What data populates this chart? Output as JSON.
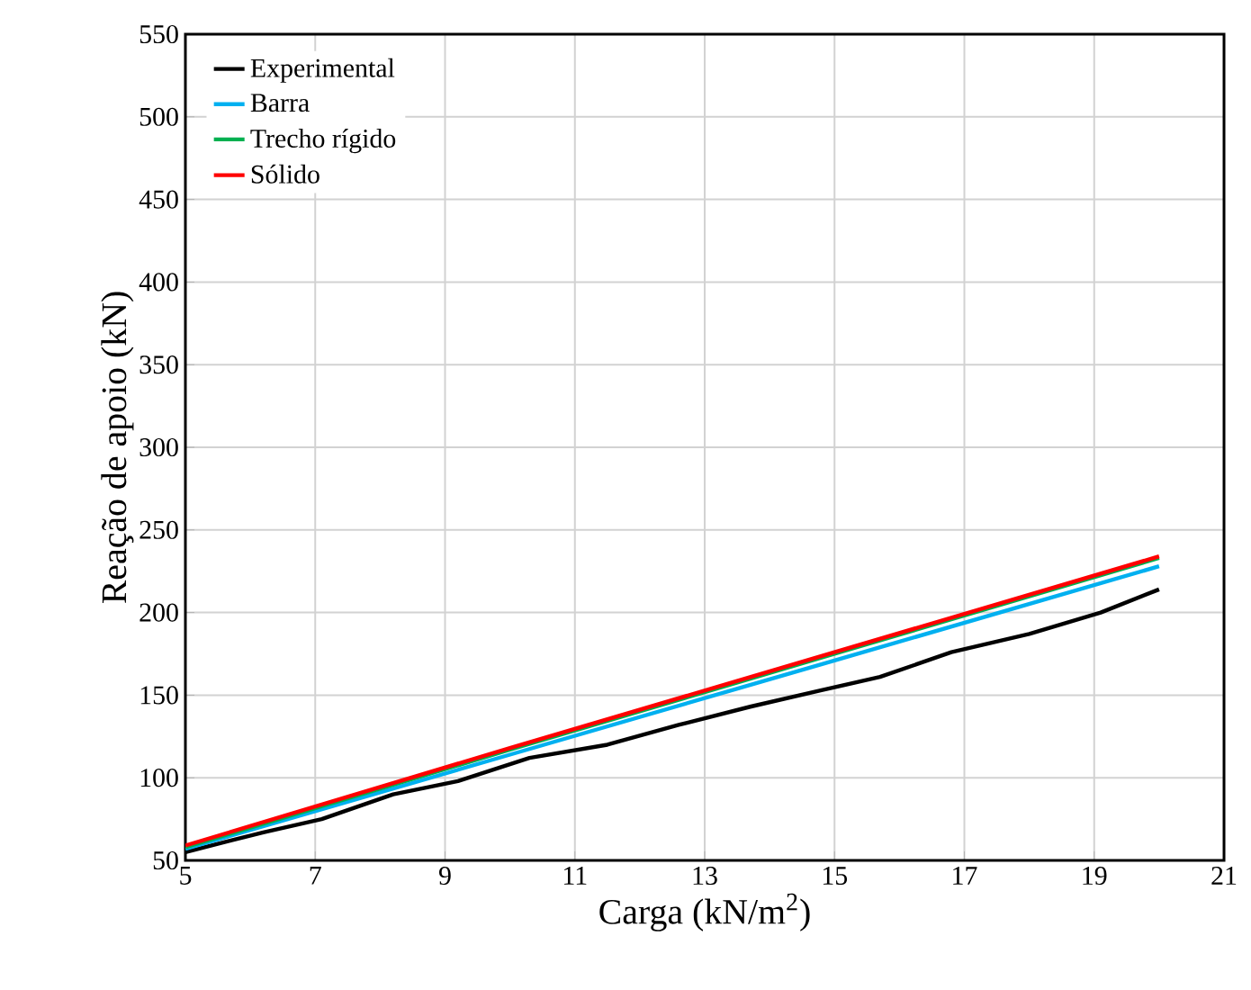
{
  "chart_data": {
    "type": "line",
    "xlabel": "Carga (kN/m$^{2}$)",
    "ylabel": "Reação de apoio (kN)",
    "xlim": [
      5,
      21
    ],
    "xticks": [
      5,
      7,
      9,
      11,
      13,
      15,
      17,
      19,
      21
    ],
    "ylim": [
      50,
      550
    ],
    "yticks": [
      50,
      100,
      150,
      200,
      250,
      300,
      350,
      400,
      450,
      500,
      550
    ],
    "grid": true,
    "legend": "top left",
    "marker": "none",
    "line_style": "solid",
    "series": [
      {
        "name": "Experimental",
        "color": "#000000",
        "x": [
          5,
          6.2,
          7.1,
          8.2,
          9.2,
          10.3,
          11.5,
          12.6,
          13.7,
          14.8,
          15.7,
          16.8,
          18,
          19.1,
          20
        ],
        "values": [
          55,
          67,
          75,
          90,
          98,
          112,
          120,
          132,
          143,
          153,
          161,
          176,
          187,
          200,
          214
        ]
      },
      {
        "name": "Barra",
        "color": "#00b0f0",
        "x": [
          5,
          10,
          15,
          20
        ],
        "values": [
          57,
          114,
          171,
          228
        ]
      },
      {
        "name": "Trecho rígido",
        "color": "#00b050",
        "x": [
          5,
          10,
          15,
          20
        ],
        "values": [
          58,
          117,
          175,
          233
        ]
      },
      {
        "name": "Sólido",
        "color": "#ff0000",
        "x": [
          5,
          10,
          15,
          20
        ],
        "values": [
          59,
          118,
          176,
          234
        ]
      }
    ]
  }
}
